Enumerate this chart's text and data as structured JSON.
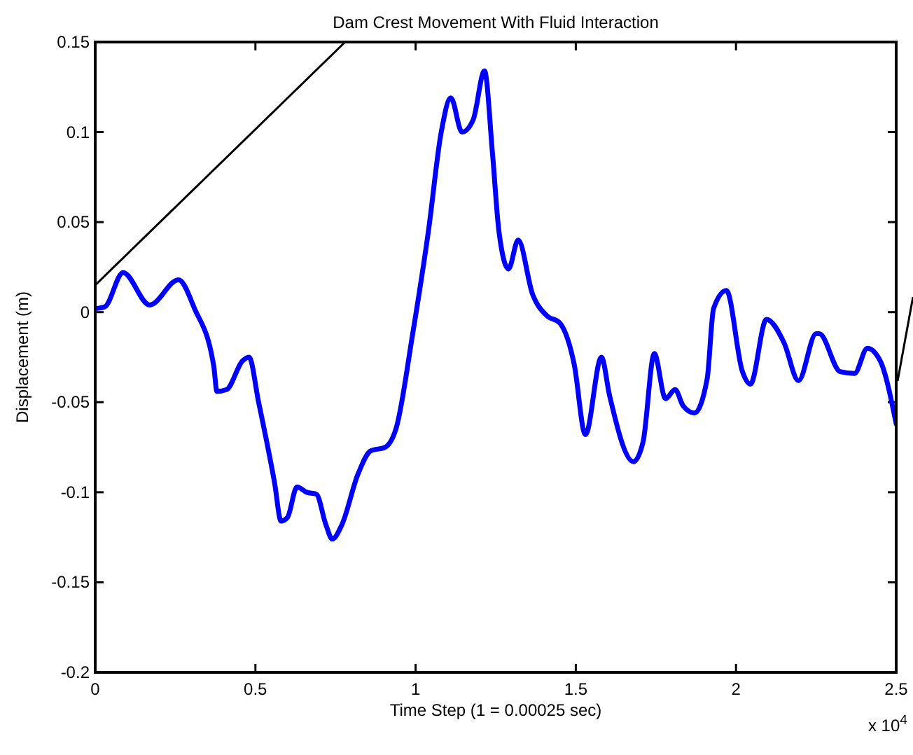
{
  "chart_data": {
    "type": "line",
    "title": "Dam Crest Movement With Fluid Interaction",
    "xlabel": "Time Step (1 = 0.00025 sec)",
    "ylabel": "Displacement (m)",
    "annotations": [
      "x 10$^{4}$"
    ],
    "xlim": [
      0,
      2.5
    ],
    "ylim": [
      -0.2,
      0.15
    ],
    "xticks": [
      0,
      0.5,
      1,
      1.5,
      2,
      2.5
    ],
    "yticks": [
      -0.2,
      -0.15,
      -0.1,
      -0.05,
      0,
      0.05,
      0.1,
      0.15
    ],
    "grid": false,
    "marker": "none",
    "series": [
      {
        "color": "#0000ff",
        "x": [
          0,
          0.03,
          0.087,
          0.17,
          0.26,
          0.31,
          0.37,
          0.38,
          0.41,
          0.46,
          0.48,
          0.51,
          0.56,
          0.58,
          0.6,
          0.63,
          0.66,
          0.69,
          0.72,
          0.74,
          0.77,
          0.82,
          0.86,
          0.905,
          0.94,
          0.99,
          1.04,
          1.08,
          1.11,
          1.145,
          1.18,
          1.215,
          1.24,
          1.26,
          1.29,
          1.32,
          1.365,
          1.41,
          1.45,
          1.495,
          1.53,
          1.58,
          1.605,
          1.68,
          1.71,
          1.745,
          1.78,
          1.81,
          1.835,
          1.87,
          1.91,
          1.93,
          1.97,
          2.02,
          2.045,
          2.095,
          2.15,
          2.195,
          2.25,
          2.26,
          2.325,
          2.37,
          2.41,
          2.45,
          2.5
        ],
        "values": [
          0.002,
          0.003,
          0.022,
          0.004,
          0.018,
          0.002,
          -0.03,
          -0.044,
          -0.043,
          -0.027,
          -0.025,
          -0.05,
          -0.095,
          -0.116,
          -0.114,
          -0.097,
          -0.1,
          -0.101,
          -0.118,
          -0.126,
          -0.118,
          -0.09,
          -0.077,
          -0.075,
          -0.064,
          -0.013,
          0.045,
          0.1,
          0.119,
          0.1,
          0.107,
          0.134,
          0.088,
          0.045,
          0.024,
          0.04,
          0.01,
          -0.002,
          -0.006,
          -0.029,
          -0.068,
          -0.025,
          -0.046,
          -0.083,
          -0.072,
          -0.023,
          -0.048,
          -0.043,
          -0.052,
          -0.056,
          -0.037,
          0.002,
          0.012,
          -0.033,
          -0.04,
          -0.004,
          -0.017,
          -0.038,
          -0.012,
          -0.012,
          -0.033,
          -0.034,
          -0.02,
          -0.027,
          -0.062
        ]
      },
      {
        "color": "#000000",
        "x": [
          0,
          0.78
        ],
        "values": [
          0.015,
          0.15
        ],
        "line_style": "solid"
      }
    ]
  }
}
